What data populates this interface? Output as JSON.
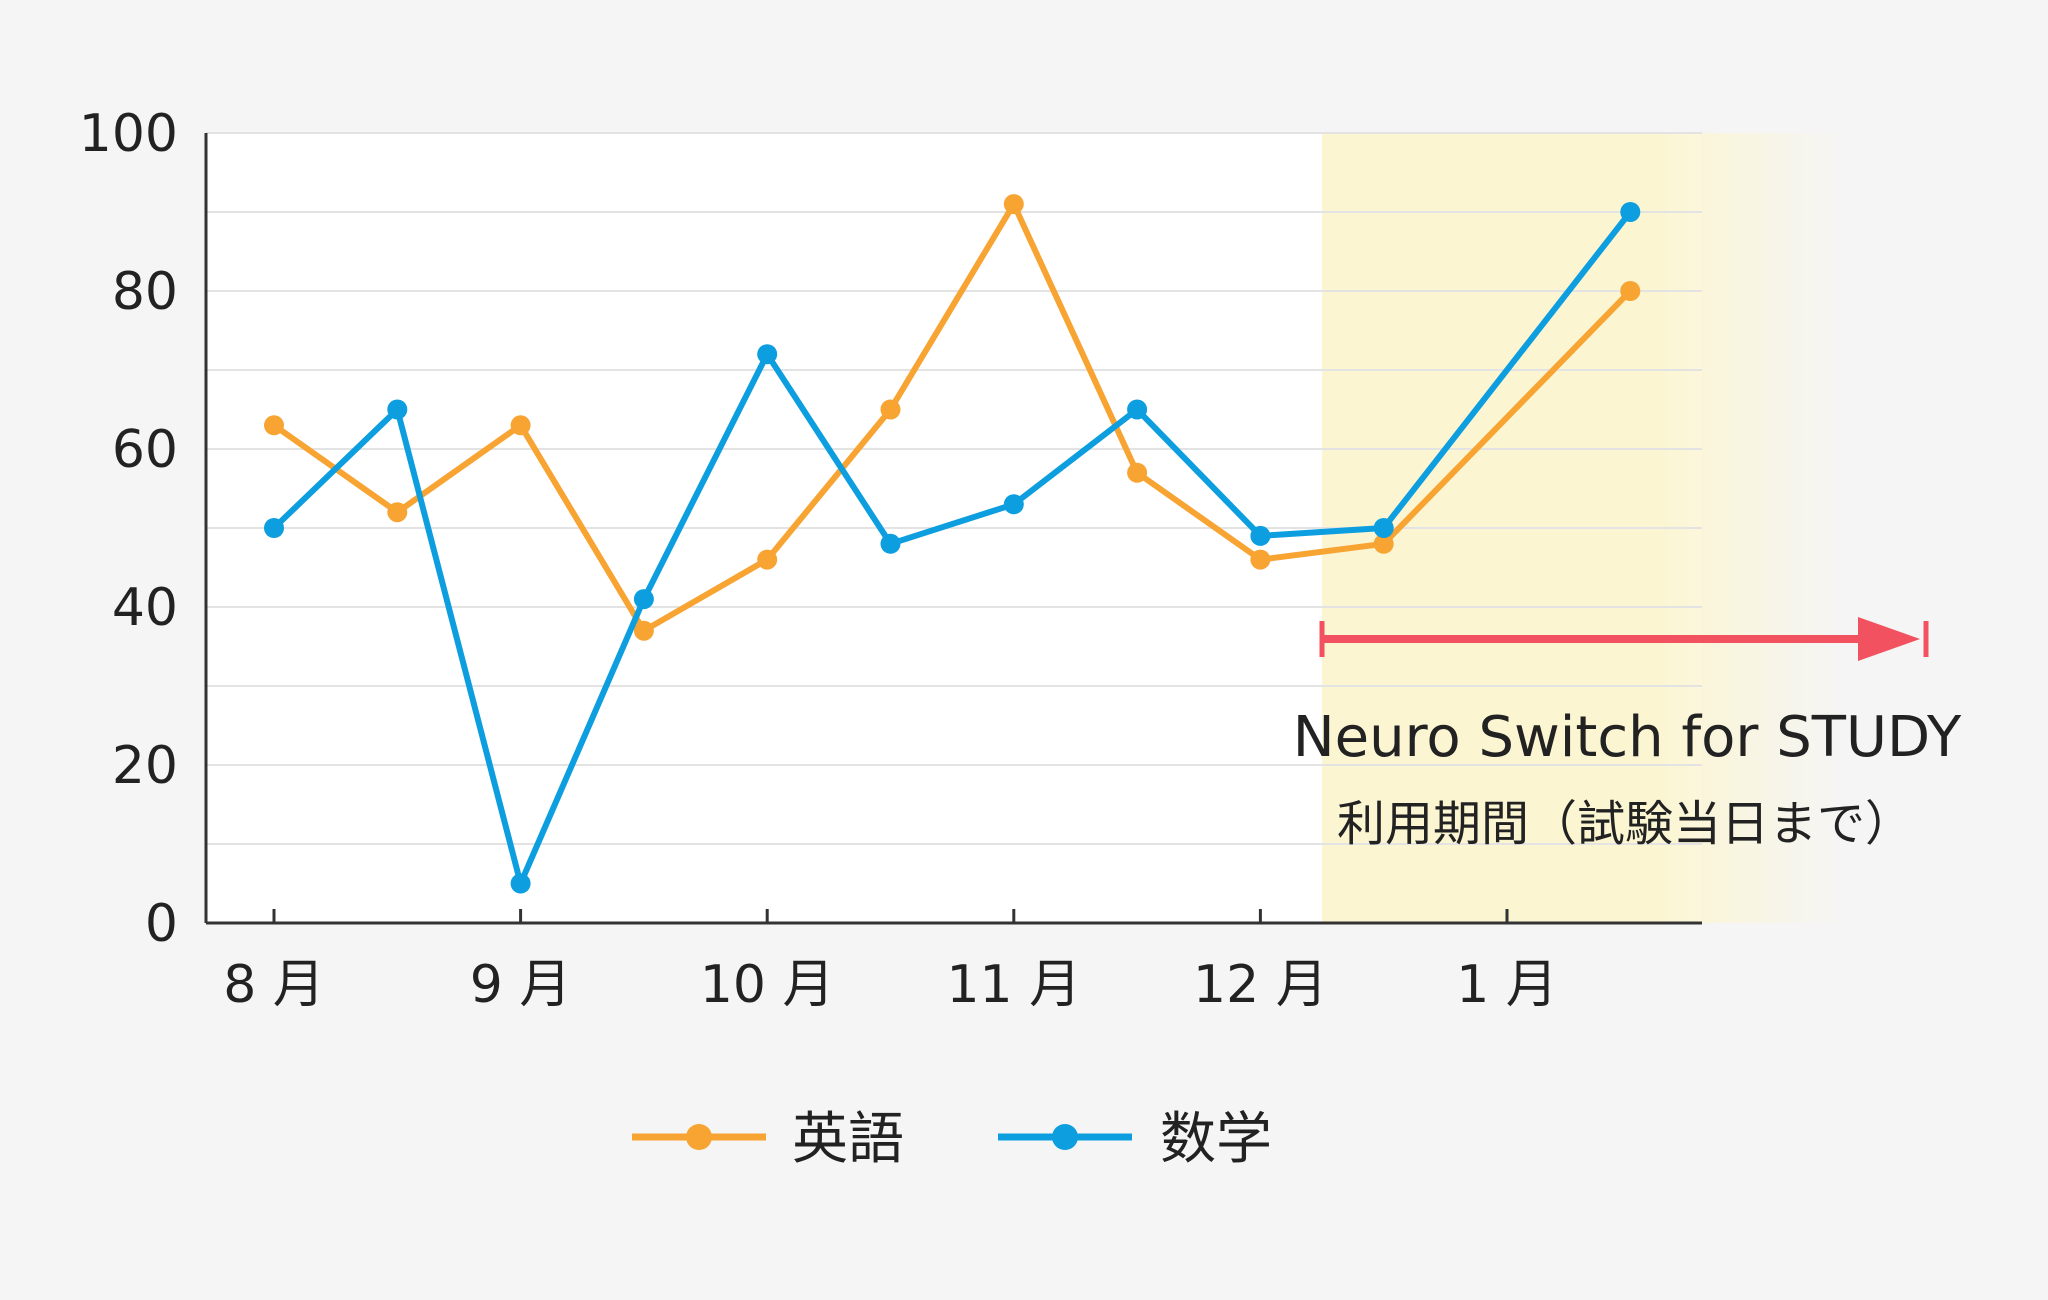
{
  "chart_data": {
    "type": "line",
    "title": "",
    "xlabel": "",
    "ylabel": "",
    "ylim": [
      0,
      100
    ],
    "yticks": [
      0,
      20,
      40,
      60,
      80,
      100
    ],
    "grid": true,
    "legend_position": "bottom",
    "x_tick_labels": [
      "8 月",
      "9 月",
      "10 月",
      "11 月",
      "12 月",
      "1 月"
    ],
    "x_points": [
      "8月前半",
      "8月後半",
      "9月前半",
      "9月後半",
      "10月前半",
      "10月後半",
      "11月前半",
      "11月後半",
      "12月前半",
      "12月後半",
      "1月後半"
    ],
    "series": [
      {
        "name": "英語",
        "color": "#f8a433",
        "values": [
          63,
          52,
          63,
          37,
          46,
          65,
          91,
          57,
          46,
          48,
          80
        ]
      },
      {
        "name": "数学",
        "color": "#0d9ee0",
        "values": [
          50,
          65,
          5,
          41,
          72,
          48,
          53,
          65,
          49,
          50,
          90
        ]
      }
    ],
    "highlight": {
      "color": "#fbf5d2",
      "arrow_color": "#f2525f",
      "label_line1": "Neuro Switch for STUDY",
      "label_line2": "利用期間（試験当日まで）"
    }
  }
}
